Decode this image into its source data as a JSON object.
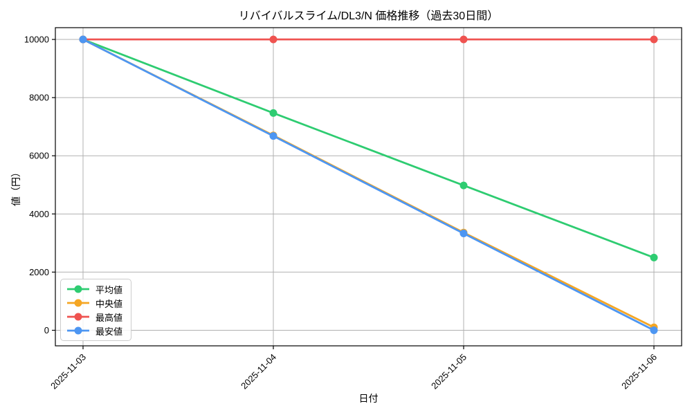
{
  "chart_data": {
    "type": "line",
    "title": "リバイバルスライム/DL3/N 価格推移（過去30日間）",
    "xlabel": "日付",
    "ylabel": "値（円）",
    "categories": [
      "2025-11-03",
      "2025-11-04",
      "2025-11-05",
      "2025-11-06"
    ],
    "series": [
      {
        "name": "平均値",
        "color": "#2ecc71",
        "values": [
          10000,
          7470,
          4980,
          2500
        ]
      },
      {
        "name": "中央値",
        "color": "#f5a623",
        "values": [
          10000,
          6700,
          3360,
          100
        ]
      },
      {
        "name": "最高値",
        "color": "#ef5350",
        "values": [
          10000,
          10000,
          10000,
          10000
        ]
      },
      {
        "name": "最安値",
        "color": "#4d96f2",
        "values": [
          10000,
          6680,
          3330,
          0
        ]
      }
    ],
    "yticks": [
      0,
      2000,
      4000,
      6000,
      8000,
      10000
    ],
    "ylim": [
      -535,
      10405
    ],
    "grid": true,
    "legend_position": "lower left",
    "marker": "circle"
  },
  "style": {
    "grid_color": "#b0b0b0",
    "spine_color": "#000000",
    "text_color": "#000000",
    "legend_border_color": "#cccccc"
  }
}
